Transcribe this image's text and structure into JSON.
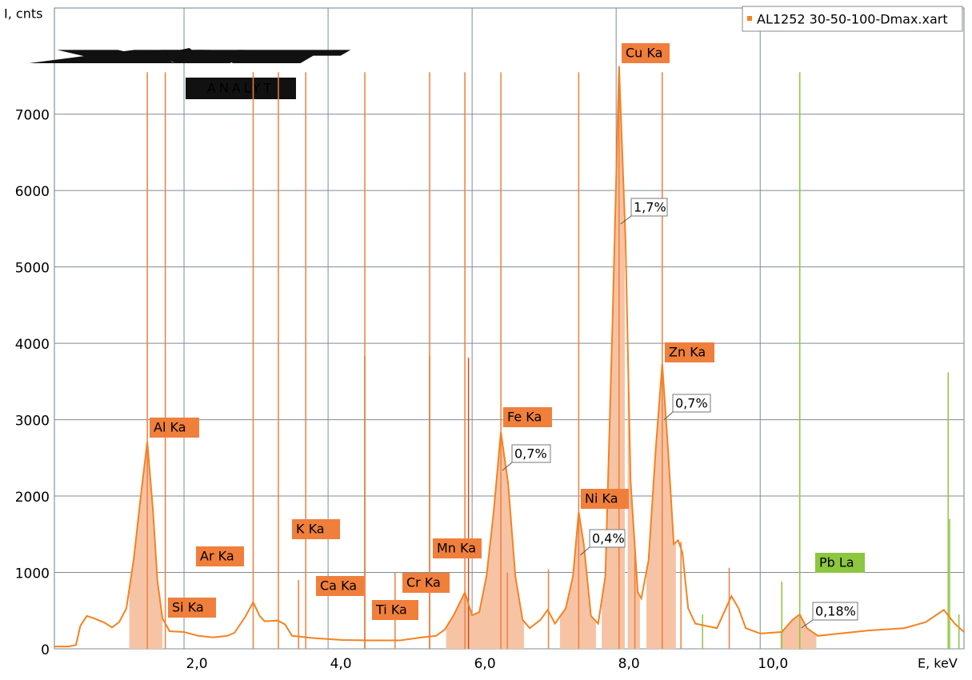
{
  "logo": {
    "text": "XART",
    "tagline": "ANALYT"
  },
  "chart_data": {
    "type": "line",
    "y_label": "I, cnts",
    "x_label": "E, keV",
    "xlim": [
      0.2,
      12.83
    ],
    "ylim": [
      0,
      8390
    ],
    "xticks": [
      {
        "value": 2,
        "label": "2,0"
      },
      {
        "value": 4,
        "label": "4,0"
      },
      {
        "value": 6,
        "label": "6,0"
      },
      {
        "value": 8,
        "label": "8,0"
      },
      {
        "value": 10,
        "label": "10,0"
      }
    ],
    "yticks": [
      0,
      1000,
      2000,
      3000,
      4000,
      5000,
      6000,
      7000
    ],
    "grid": true,
    "legend": "top-right",
    "series": [
      {
        "name": "AL1252 30-50-100-Dmax.xart",
        "color": "#f58220",
        "x": [
          0.2,
          0.4,
          0.5,
          0.56,
          0.65,
          0.75,
          0.9,
          1.0,
          1.1,
          1.2,
          1.3,
          1.4,
          1.49,
          1.57,
          1.63,
          1.7,
          1.8,
          2.0,
          2.2,
          2.4,
          2.6,
          2.7,
          2.85,
          2.96,
          3.05,
          3.12,
          3.3,
          3.4,
          3.5,
          3.8,
          4.2,
          4.6,
          5.0,
          5.3,
          5.5,
          5.62,
          5.75,
          5.9,
          6.0,
          6.1,
          6.2,
          6.3,
          6.4,
          6.5,
          6.6,
          6.7,
          6.8,
          6.95,
          7.05,
          7.15,
          7.3,
          7.4,
          7.48,
          7.55,
          7.65,
          7.75,
          7.85,
          7.95,
          8.04,
          8.13,
          8.2,
          8.3,
          8.35,
          8.45,
          8.55,
          8.64,
          8.72,
          8.8,
          8.86,
          8.92,
          9.0,
          9.1,
          9.4,
          9.6,
          9.7,
          9.8,
          10.0,
          10.3,
          10.45,
          10.55,
          10.65,
          10.8,
          11.0,
          11.5,
          12.0,
          12.3,
          12.55,
          12.7,
          12.83
        ],
        "values": [
          30,
          30,
          50,
          300,
          430,
          400,
          340,
          280,
          350,
          530,
          1160,
          2000,
          2710,
          1800,
          900,
          400,
          230,
          220,
          170,
          150,
          170,
          210,
          420,
          610,
          430,
          360,
          370,
          320,
          170,
          140,
          115,
          110,
          110,
          150,
          170,
          250,
          450,
          740,
          440,
          480,
          950,
          1790,
          2840,
          2170,
          950,
          380,
          270,
          380,
          510,
          330,
          530,
          950,
          1790,
          1370,
          430,
          330,
          950,
          4300,
          7630,
          5350,
          2200,
          740,
          660,
          1160,
          2620,
          3730,
          2620,
          1370,
          1420,
          1260,
          530,
          330,
          270,
          690,
          530,
          270,
          200,
          220,
          380,
          450,
          270,
          170,
          190,
          240,
          270,
          350,
          510,
          330,
          220
        ]
      }
    ],
    "rois": [
      {
        "from": 1.24,
        "to": 1.7
      },
      {
        "from": 5.64,
        "to": 6.72
      },
      {
        "from": 7.22,
        "to": 7.72
      },
      {
        "from": 7.8,
        "to": 8.12
      },
      {
        "from": 8.16,
        "to": 8.33
      },
      {
        "from": 8.42,
        "to": 8.83
      },
      {
        "from": 10.28,
        "to": 10.78
      }
    ],
    "element_lines": [
      {
        "label": "Al Ka",
        "energy": 1.49,
        "height": 7550,
        "color": "#f07f3c"
      },
      {
        "label": "Si Ka",
        "energy": 1.74,
        "height": 7550,
        "color": "#f07f3c"
      },
      {
        "label": "Ar Ka",
        "energy": 2.96,
        "height": 7550,
        "color": "#f07f3c"
      },
      {
        "label": "K Ka",
        "energy": 3.31,
        "height": 7550,
        "color": "#f07f3c"
      },
      {
        "label": "Ca Ka",
        "energy": 3.69,
        "height": 7550,
        "color": "#f07f3c"
      },
      {
        "label": "Ti Ka",
        "energy": 4.51,
        "height": 7550,
        "color": "#f07f3c"
      },
      {
        "label": "Cr Ka",
        "energy": 5.41,
        "height": 7550,
        "color": "#f07f3c"
      },
      {
        "label": "Mn Ka",
        "energy": 5.9,
        "height": 7550,
        "color": "#f07f3c"
      },
      {
        "label": "Fe Ka",
        "energy": 6.4,
        "height": 7550,
        "color": "#f07f3c",
        "concentration": "0,7%"
      },
      {
        "label": "Ni Ka",
        "energy": 7.48,
        "height": 7550,
        "color": "#f07f3c",
        "concentration": "0,4%"
      },
      {
        "label": "Cu Ka",
        "energy": 8.04,
        "height": 7550,
        "color": "#f07f3c",
        "concentration": "1,7%"
      },
      {
        "label": "Zn Ka",
        "energy": 8.64,
        "height": 7550,
        "color": "#f07f3c",
        "concentration": "0,7%"
      },
      {
        "label": "Pb La",
        "energy": 10.55,
        "height": 7550,
        "color": "#8dc63f",
        "concentration": "0,18%"
      }
    ],
    "minor_lines": [
      {
        "energy": 3.59,
        "height": 900,
        "color": "#f07f3c"
      },
      {
        "energy": 4.51,
        "height": 3830,
        "color": "#c8501a"
      },
      {
        "energy": 4.93,
        "height": 1000,
        "color": "#f07f3c"
      },
      {
        "energy": 5.41,
        "height": 3830,
        "color": "#c8501a"
      },
      {
        "energy": 5.95,
        "height": 3810,
        "color": "#c8501a"
      },
      {
        "energy": 6.49,
        "height": 1000,
        "color": "#f07f3c"
      },
      {
        "energy": 7.06,
        "height": 1040,
        "color": "#f07f3c"
      },
      {
        "energy": 8.26,
        "height": 1300,
        "color": "#f07f3c"
      },
      {
        "energy": 8.9,
        "height": 1400,
        "color": "#f07f3c"
      },
      {
        "energy": 9.57,
        "height": 1060,
        "color": "#f07f3c"
      },
      {
        "energy": 9.2,
        "height": 450,
        "color": "#8dc63f"
      },
      {
        "energy": 10.3,
        "height": 880,
        "color": "#8dc63f"
      },
      {
        "energy": 12.61,
        "height": 3620,
        "color": "#8dc63f"
      },
      {
        "energy": 12.63,
        "height": 1700,
        "color": "#8dc63f"
      },
      {
        "energy": 12.76,
        "height": 450,
        "color": "#8dc63f"
      }
    ]
  }
}
